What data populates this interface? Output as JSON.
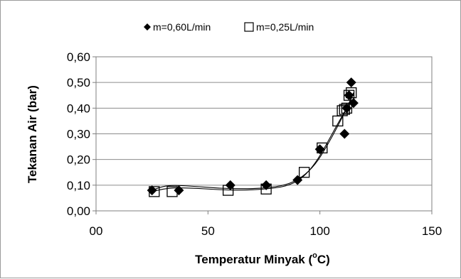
{
  "chart_data": {
    "type": "scatter",
    "title": "",
    "xlabel": {
      "main": "Temperatur Minyak (",
      "sup": "o",
      "tail": "C)"
    },
    "ylabel": "Tekanan Air (bar)",
    "xlim": [
      0,
      150
    ],
    "ylim": [
      0,
      0.6
    ],
    "x_ticks": [
      0,
      50,
      100,
      150
    ],
    "x_tick_labels": [
      "00",
      "50",
      "100",
      "150"
    ],
    "y_ticks": [
      0,
      0.1,
      0.2,
      0.3,
      0.4,
      0.5,
      0.6
    ],
    "y_tick_labels": [
      "0,00",
      "0,10",
      "0,20",
      "0,30",
      "0,40",
      "0,50",
      "0,60"
    ],
    "grid": "horizontal",
    "legend_position": "top",
    "series": [
      {
        "name": "m=0,60L/min",
        "marker": "diamond",
        "color": "#000000",
        "points": [
          [
            25,
            0.08
          ],
          [
            37,
            0.08
          ],
          [
            60,
            0.1
          ],
          [
            76,
            0.1
          ],
          [
            90,
            0.12
          ],
          [
            100,
            0.24
          ],
          [
            111,
            0.3
          ],
          [
            112,
            0.4
          ],
          [
            113,
            0.45
          ],
          [
            114,
            0.5
          ],
          [
            115,
            0.42
          ]
        ]
      },
      {
        "name": "m=0,25L/min",
        "marker": "square-open",
        "color": "#000000",
        "points": [
          [
            26,
            0.075
          ],
          [
            34,
            0.075
          ],
          [
            59,
            0.08
          ],
          [
            76,
            0.085
          ],
          [
            93,
            0.15
          ],
          [
            101,
            0.245
          ],
          [
            108,
            0.35
          ],
          [
            110,
            0.39
          ],
          [
            111,
            0.395
          ],
          [
            112,
            0.4
          ],
          [
            113,
            0.45
          ],
          [
            114,
            0.46
          ]
        ]
      }
    ],
    "trendlines": [
      {
        "series": "m=0,60L/min",
        "points": [
          [
            25,
            0.08
          ],
          [
            30,
            0.096
          ],
          [
            35,
            0.1
          ],
          [
            45,
            0.095
          ],
          [
            55,
            0.088
          ],
          [
            65,
            0.086
          ],
          [
            75,
            0.088
          ],
          [
            85,
            0.1
          ],
          [
            92,
            0.13
          ],
          [
            98,
            0.18
          ],
          [
            103,
            0.25
          ],
          [
            108,
            0.33
          ],
          [
            112,
            0.4
          ],
          [
            115,
            0.46
          ]
        ]
      },
      {
        "series": "m=0,25L/min",
        "points": [
          [
            25,
            0.075
          ],
          [
            30,
            0.085
          ],
          [
            35,
            0.09
          ],
          [
            45,
            0.088
          ],
          [
            55,
            0.082
          ],
          [
            65,
            0.08
          ],
          [
            75,
            0.084
          ],
          [
            85,
            0.095
          ],
          [
            92,
            0.125
          ],
          [
            98,
            0.185
          ],
          [
            103,
            0.26
          ],
          [
            108,
            0.34
          ],
          [
            112,
            0.4
          ],
          [
            115,
            0.455
          ]
        ]
      }
    ]
  }
}
